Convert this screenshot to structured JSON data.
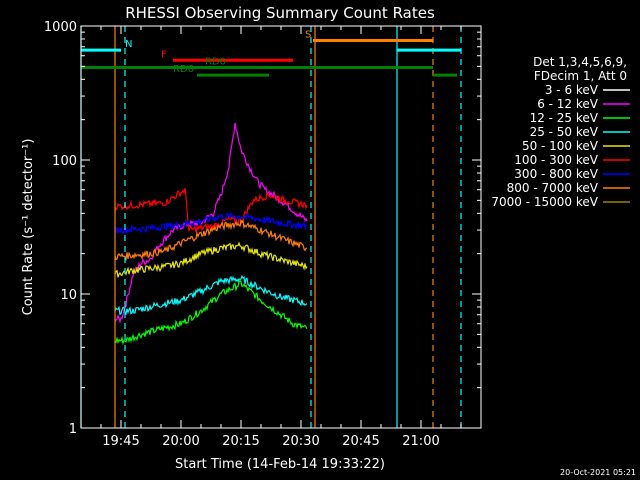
{
  "chart_data": {
    "type": "line",
    "title": "RHESSI Observing Summary Count Rates",
    "xlabel": "Start Time (14-Feb-14 19:33:22)",
    "ylabel": "Count Rate (s⁻¹ detector⁻¹)",
    "yscale": "log",
    "ylim": [
      1,
      1000
    ],
    "x_unit": "minutes after 19:33:22 (clock time shown on axis)",
    "xlim_clock": [
      "19:35",
      "21:15"
    ],
    "xticks": [
      {
        "label": "19:45",
        "t": "19:45"
      },
      {
        "label": "20:00",
        "t": "20:00"
      },
      {
        "label": "20:15",
        "t": "20:15"
      },
      {
        "label": "20:30",
        "t": "20:30"
      },
      {
        "label": "20:45",
        "t": "20:45"
      },
      {
        "label": "21:00",
        "t": "21:00"
      }
    ],
    "yticks": [
      {
        "label": "1",
        "v": 1
      },
      {
        "label": "10",
        "v": 10
      },
      {
        "label": "100",
        "v": 100
      },
      {
        "label": "1000",
        "v": 1000
      }
    ],
    "legend_header": [
      "Det 1,3,4,5,6,9,",
      "FDecim 1, Att 0"
    ],
    "legend_position": "right",
    "series": [
      {
        "name": "3 - 6 keV",
        "color": "#000000",
        "points": [
          [
            "19:43:30",
            3.2
          ],
          [
            "19:44:30",
            3.0
          ],
          [
            "19:45:00",
            2.2
          ],
          [
            "19:46:00",
            9.0
          ],
          [
            "19:48:00",
            15
          ],
          [
            "19:50:00",
            16
          ],
          [
            "19:52:00",
            17
          ],
          [
            "19:55:00",
            22
          ],
          [
            "19:58:00",
            27
          ],
          [
            "20:01:00",
            30
          ],
          [
            "20:05:00",
            33
          ],
          [
            "20:08:00",
            37
          ],
          [
            "20:10:00",
            45
          ],
          [
            "20:12:00",
            60
          ],
          [
            "20:14:00",
            100
          ],
          [
            "20:16:00",
            80
          ],
          [
            "20:18:00",
            65
          ],
          [
            "20:20:00",
            55
          ],
          [
            "20:22:00",
            50
          ],
          [
            "20:24:00",
            45
          ],
          [
            "20:26:00",
            40
          ],
          [
            "20:28:00",
            35
          ],
          [
            "20:30:00",
            30
          ],
          [
            "20:31:30",
            25
          ]
        ]
      },
      {
        "name": "6 - 12 keV",
        "color": "#ff00ff",
        "points": [
          [
            "19:43:30",
            6.5
          ],
          [
            "19:45:00",
            6.5
          ],
          [
            "19:46:00",
            8
          ],
          [
            "19:48:00",
            14
          ],
          [
            "19:50:00",
            17
          ],
          [
            "19:52:00",
            18
          ],
          [
            "19:55:00",
            24
          ],
          [
            "19:58:00",
            30
          ],
          [
            "20:01:00",
            33
          ],
          [
            "20:05:00",
            34
          ],
          [
            "20:08:00",
            40
          ],
          [
            "20:10:00",
            55
          ],
          [
            "20:12:00",
            90
          ],
          [
            "20:13:30",
            190
          ],
          [
            "20:15:00",
            120
          ],
          [
            "20:17:00",
            90
          ],
          [
            "20:19:00",
            70
          ],
          [
            "20:21:00",
            60
          ],
          [
            "20:23:00",
            55
          ],
          [
            "20:25:00",
            50
          ],
          [
            "20:27:00",
            45
          ],
          [
            "20:29:00",
            40
          ],
          [
            "20:31:30",
            35
          ]
        ]
      },
      {
        "name": "12 - 25 keV",
        "color": "#00ff00",
        "points": [
          [
            "19:43:30",
            4.5
          ],
          [
            "19:46:00",
            4.5
          ],
          [
            "19:50:00",
            5
          ],
          [
            "19:55:00",
            5.5
          ],
          [
            "20:00:00",
            6
          ],
          [
            "20:05:00",
            7.5
          ],
          [
            "20:10:00",
            10
          ],
          [
            "20:15:00",
            12
          ],
          [
            "20:20:00",
            9
          ],
          [
            "20:25:00",
            7
          ],
          [
            "20:28:00",
            6
          ],
          [
            "20:31:30",
            5.5
          ]
        ]
      },
      {
        "name": "25 - 50 keV",
        "color": "#00ffff",
        "points": [
          [
            "19:43:30",
            7.5
          ],
          [
            "19:48:00",
            7.5
          ],
          [
            "19:52:00",
            8
          ],
          [
            "19:56:00",
            8.5
          ],
          [
            "20:00:00",
            9
          ],
          [
            "20:05:00",
            10.5
          ],
          [
            "20:10:00",
            12.5
          ],
          [
            "20:15:00",
            13
          ],
          [
            "20:20:00",
            11
          ],
          [
            "20:25:00",
            9.5
          ],
          [
            "20:31:30",
            8.5
          ]
        ]
      },
      {
        "name": "50 - 100 keV",
        "color": "#e8e800",
        "points": [
          [
            "19:43:30",
            14
          ],
          [
            "19:48:00",
            15
          ],
          [
            "19:52:00",
            15.5
          ],
          [
            "19:56:00",
            16
          ],
          [
            "20:00:00",
            17
          ],
          [
            "20:05:00",
            20
          ],
          [
            "20:10:00",
            22
          ],
          [
            "20:15:00",
            23
          ],
          [
            "20:20:00",
            20
          ],
          [
            "20:25:00",
            18
          ],
          [
            "20:31:30",
            16
          ]
        ]
      },
      {
        "name": "100 - 300 keV",
        "color": "#ff0000",
        "points": [
          [
            "19:43:30",
            45
          ],
          [
            "19:48:00",
            46
          ],
          [
            "19:52:00",
            47
          ],
          [
            "19:56:00",
            48
          ],
          [
            "19:59:00",
            55
          ],
          [
            "20:01:00",
            60
          ],
          [
            "20:02:00",
            30
          ],
          [
            "20:08:00",
            32
          ],
          [
            "20:12:00",
            36
          ],
          [
            "20:15:00",
            35
          ],
          [
            "20:18:00",
            50
          ],
          [
            "20:22:00",
            55
          ],
          [
            "20:26:00",
            50
          ],
          [
            "20:31:30",
            46
          ]
        ]
      },
      {
        "name": "300 - 800 keV",
        "color": "#0000ff",
        "points": [
          [
            "19:43:30",
            30
          ],
          [
            "19:48:00",
            30.5
          ],
          [
            "19:52:00",
            31
          ],
          [
            "19:56:00",
            32
          ],
          [
            "20:00:00",
            33
          ],
          [
            "20:05:00",
            35
          ],
          [
            "20:10:00",
            38
          ],
          [
            "20:15:00",
            38
          ],
          [
            "20:20:00",
            36
          ],
          [
            "20:25:00",
            34
          ],
          [
            "20:31:30",
            32
          ]
        ]
      },
      {
        "name": "800 - 7000 keV",
        "color": "#ff8000",
        "points": [
          [
            "19:43:30",
            19
          ],
          [
            "19:48:00",
            19.5
          ],
          [
            "19:52:00",
            20
          ],
          [
            "19:56:00",
            21
          ],
          [
            "20:00:00",
            24
          ],
          [
            "20:05:00",
            28
          ],
          [
            "20:10:00",
            32
          ],
          [
            "20:15:00",
            34
          ],
          [
            "20:20:00",
            30
          ],
          [
            "20:25:00",
            26
          ],
          [
            "20:31:30",
            22
          ]
        ]
      },
      {
        "name": "7000 - 15000 keV",
        "color": "#a08000",
        "points": []
      }
    ],
    "annotations": [
      {
        "text": "N",
        "color": "#00ffff",
        "start": "19:35",
        "end": "19:45",
        "level": 660,
        "label_at": "19:46"
      },
      {
        "text": "N",
        "color": "#00ffff",
        "start": "20:54",
        "end": "21:10",
        "level": 660
      },
      {
        "text": "S",
        "color": "#ff8000",
        "start": "20:33",
        "end": "21:03",
        "level": 780,
        "label_at": "20:31"
      },
      {
        "text": "F",
        "color": "#ff0000",
        "start": "19:58",
        "end": "20:28",
        "level": 555,
        "label_at": "19:55"
      },
      {
        "text": "RD0",
        "color": "#008000",
        "start": "19:35",
        "end": "21:03",
        "level": 490,
        "label_at": "20:06"
      },
      {
        "text": "RD0",
        "color": "#008000",
        "start": "21:03",
        "end": "21:09",
        "level": 430
      },
      {
        "text": "RD6",
        "color": "#008000",
        "start": "20:04",
        "end": "20:22",
        "level": 430,
        "label_at": "19:58"
      }
    ],
    "vlines": [
      {
        "t": "19:35",
        "color": "#00ffff",
        "style": "solid"
      },
      {
        "t": "19:46",
        "color": "#00ffff",
        "style": "dashed"
      },
      {
        "t": "19:43:30",
        "color": "#ff8000",
        "style": "solid"
      },
      {
        "t": "20:32:30",
        "color": "#00ffff",
        "style": "dashed"
      },
      {
        "t": "20:33:30",
        "color": "#ff8000",
        "style": "solid"
      },
      {
        "t": "20:54",
        "color": "#00ffff",
        "style": "solid"
      },
      {
        "t": "21:03",
        "color": "#ff8000",
        "style": "dashed"
      },
      {
        "t": "21:10",
        "color": "#00ffff",
        "style": "dashed"
      }
    ],
    "footer_date": "20-Oct-2021 05:21"
  }
}
